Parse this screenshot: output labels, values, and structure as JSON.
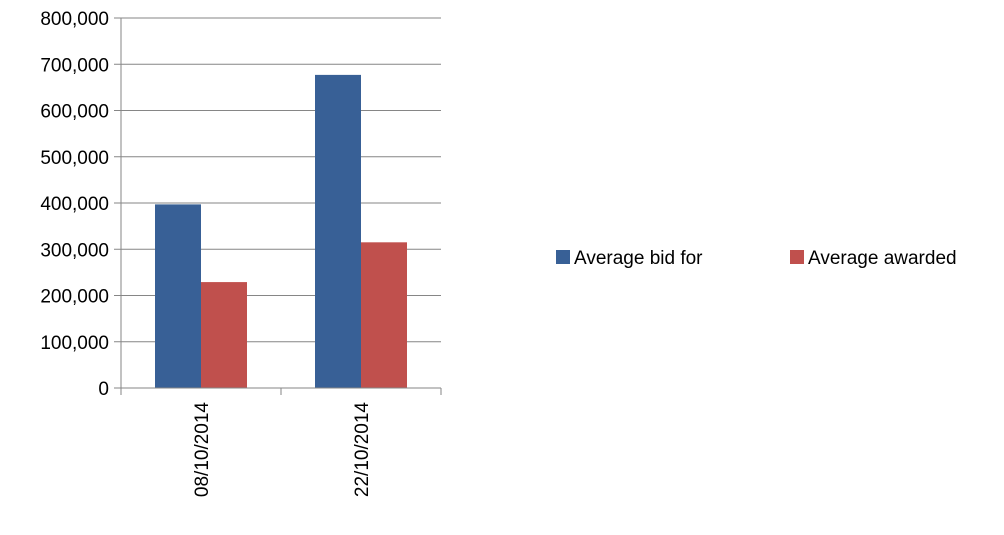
{
  "chart_data": {
    "type": "bar",
    "title": "",
    "xlabel": "",
    "ylabel": "",
    "categories": [
      "08/10/2014",
      "22/10/2014"
    ],
    "series": [
      {
        "name": "Average bid for",
        "values": [
          397000,
          677000
        ],
        "color": "#386096"
      },
      {
        "name": "Average awarded",
        "values": [
          229000,
          315000
        ],
        "color": "#C0504D"
      }
    ],
    "ylim": [
      0,
      800000
    ],
    "yticks": [
      0,
      100000,
      200000,
      300000,
      400000,
      500000,
      600000,
      700000,
      800000
    ],
    "ytick_labels": [
      "0",
      "100,000",
      "200,000",
      "300,000",
      "400,000",
      "500,000",
      "600,000",
      "700,000",
      "800,000"
    ],
    "grid": true,
    "legend_position": "right",
    "category_label_rotation": "vertical"
  }
}
